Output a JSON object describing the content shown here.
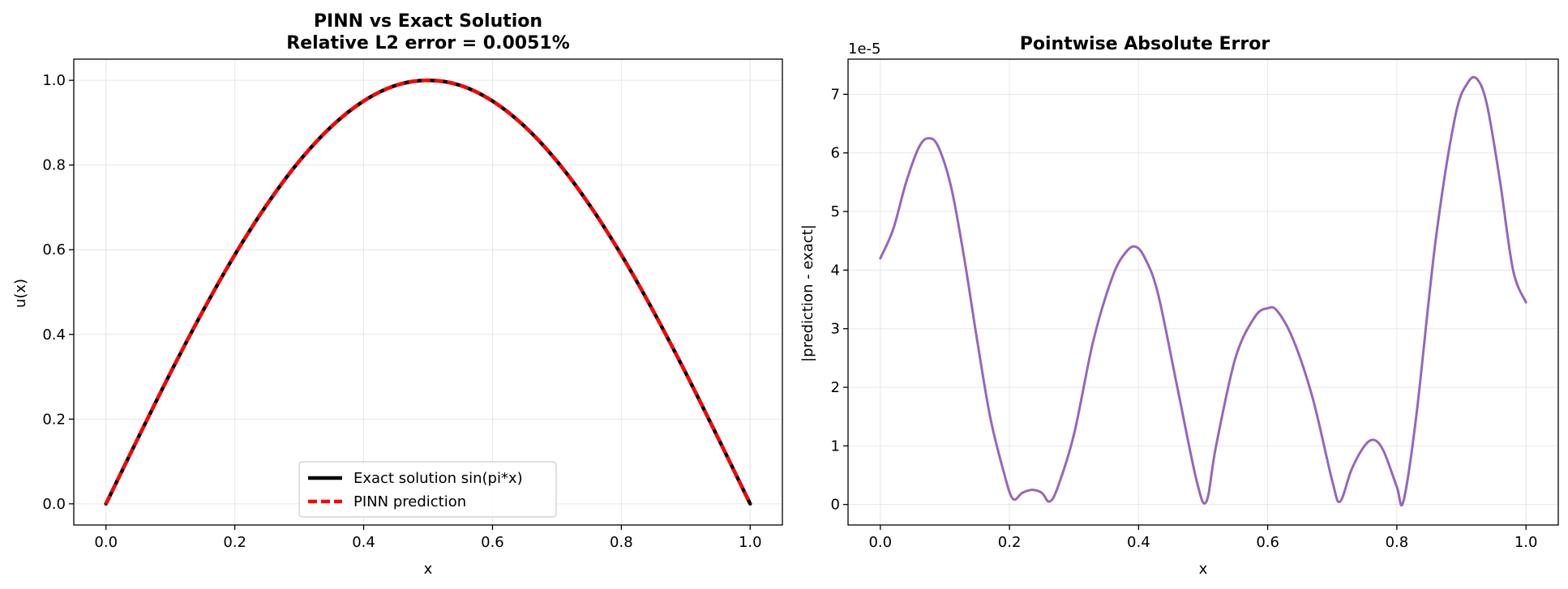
{
  "chart_data": [
    {
      "type": "line",
      "title": "PINN vs Exact Solution",
      "subtitle": "Relative L2 error = 0.0051%",
      "xlabel": "x",
      "ylabel": "u(x)",
      "xlim": [
        -0.05,
        1.05
      ],
      "ylim": [
        -0.05,
        1.05
      ],
      "xticks": [
        "0.0",
        "0.2",
        "0.4",
        "0.6",
        "0.8",
        "1.0"
      ],
      "yticks": [
        "0.0",
        "0.2",
        "0.4",
        "0.6",
        "0.8",
        "1.0"
      ],
      "grid": true,
      "legend": "lower center",
      "x": [
        0,
        0.05,
        0.1,
        0.15,
        0.2,
        0.25,
        0.3,
        0.35,
        0.4,
        0.45,
        0.5,
        0.55,
        0.6,
        0.65,
        0.7,
        0.75,
        0.8,
        0.85,
        0.9,
        0.95,
        1.0
      ],
      "series": [
        {
          "name": "Exact solution sin(pi*x)",
          "color": "#000000",
          "style": "solid",
          "values": [
            0,
            0.156,
            0.309,
            0.454,
            0.588,
            0.707,
            0.809,
            0.891,
            0.951,
            0.988,
            1.0,
            0.988,
            0.951,
            0.891,
            0.809,
            0.707,
            0.588,
            0.454,
            0.309,
            0.156,
            0
          ]
        },
        {
          "name": "PINN prediction",
          "color": "#ff0000",
          "style": "dashed",
          "values": [
            0,
            0.156,
            0.309,
            0.454,
            0.588,
            0.707,
            0.809,
            0.891,
            0.951,
            0.988,
            1.0,
            0.988,
            0.951,
            0.891,
            0.809,
            0.707,
            0.588,
            0.454,
            0.309,
            0.156,
            0
          ]
        }
      ]
    },
    {
      "type": "line",
      "title": "Pointwise Absolute Error",
      "xlabel": "x",
      "ylabel": "|prediction - exact|",
      "y_scale_label": "1e-5",
      "xlim": [
        -0.05,
        1.05
      ],
      "ylim": [
        -0.35,
        7.6
      ],
      "xticks": [
        "0.0",
        "0.2",
        "0.4",
        "0.6",
        "0.8",
        "1.0"
      ],
      "yticks": [
        "0",
        "1",
        "2",
        "3",
        "4",
        "5",
        "6",
        "7"
      ],
      "grid": true,
      "series": [
        {
          "color": "#9467bd",
          "x": [
            0,
            0.02,
            0.04,
            0.06,
            0.075,
            0.09,
            0.11,
            0.13,
            0.15,
            0.17,
            0.19,
            0.205,
            0.22,
            0.235,
            0.25,
            0.262,
            0.275,
            0.3,
            0.33,
            0.36,
            0.38,
            0.395,
            0.41,
            0.43,
            0.46,
            0.49,
            0.505,
            0.52,
            0.55,
            0.58,
            0.6,
            0.615,
            0.64,
            0.67,
            0.7,
            0.712,
            0.73,
            0.75,
            0.765,
            0.78,
            0.8,
            0.81,
            0.83,
            0.86,
            0.89,
            0.91,
            0.925,
            0.94,
            0.96,
            0.98,
            1.0
          ],
          "values": [
            4.2,
            4.7,
            5.5,
            6.1,
            6.25,
            6.1,
            5.4,
            4.2,
            2.8,
            1.5,
            0.6,
            0.1,
            0.2,
            0.25,
            0.2,
            0.05,
            0.3,
            1.2,
            2.8,
            3.9,
            4.3,
            4.4,
            4.2,
            3.6,
            2.0,
            0.4,
            0.05,
            1.0,
            2.5,
            3.2,
            3.35,
            3.3,
            2.8,
            1.8,
            0.4,
            0.05,
            0.6,
            1.0,
            1.1,
            0.9,
            0.3,
            0.05,
            1.5,
            4.5,
            6.6,
            7.2,
            7.25,
            6.8,
            5.5,
            4.0,
            3.45
          ]
        }
      ]
    }
  ]
}
